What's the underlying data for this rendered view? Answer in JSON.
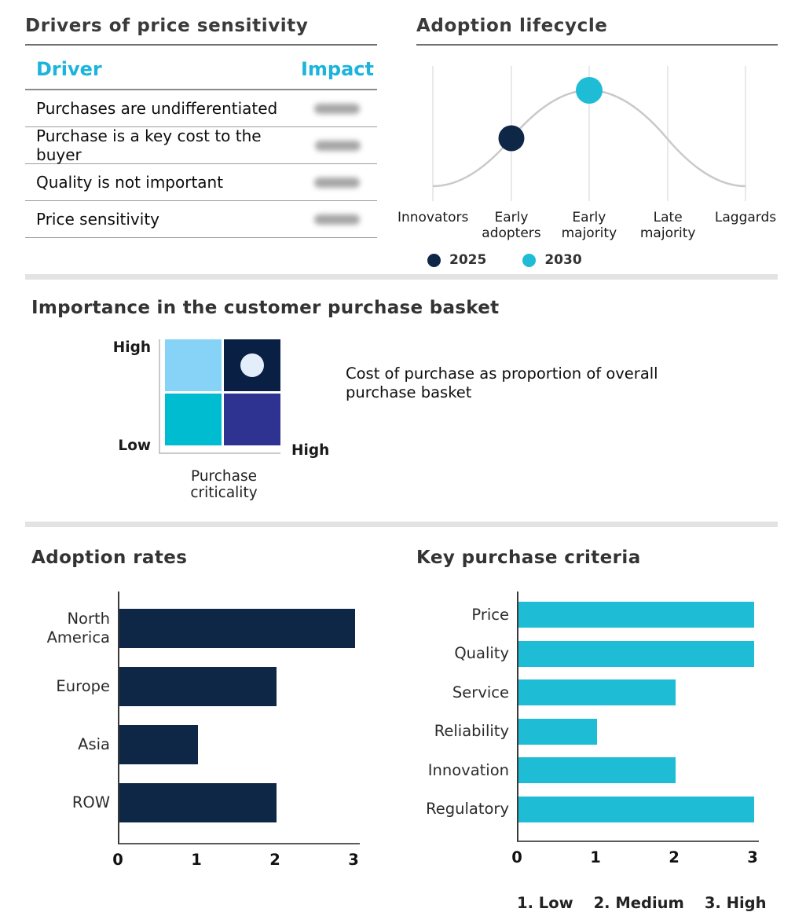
{
  "colors": {
    "navy": "#0f2747",
    "cyan": "#1fbcd6",
    "table_header_cyan": "#1cb4dc",
    "quadrant_light_blue": "#87d3f8",
    "quadrant_navy": "#0a1f44",
    "quadrant_teal": "#00bcd0",
    "quadrant_indigo": "#2e3392",
    "marker_light": "#e4eefb",
    "curve_gray": "#cccccc",
    "divider_gray": "#e3e3e3"
  },
  "chart_data": [
    {
      "type": "table",
      "title": "Drivers of price sensitivity",
      "columns": [
        "Driver",
        "Impact"
      ],
      "rows": [
        "Purchases are undifferentiated",
        "Purchase is a key cost to the buyer",
        "Quality is not important",
        "Price sensitivity"
      ],
      "impact_values": "blurred / illegible in source image"
    },
    {
      "type": "line",
      "title": "Adoption lifecycle",
      "categories": [
        "Innovators",
        "Early adopters",
        "Early majority",
        "Late majority",
        "Laggards"
      ],
      "curve": "gray bell-shaped adoption curve peaking at Early majority",
      "points": [
        {
          "series": "2025",
          "category": "Early adopters",
          "color": "#0f2747"
        },
        {
          "series": "2030",
          "category": "Early majority",
          "color": "#1fbcd6"
        }
      ],
      "legend": [
        {
          "label": "2025",
          "color": "#0f2747"
        },
        {
          "label": "2030",
          "color": "#1fbcd6"
        }
      ],
      "legend_position": "bottom-left",
      "grid": "vertical gridlines at each category"
    },
    {
      "type": "heatmap",
      "title": "Importance in the customer purchase basket",
      "y_axis_labels": [
        "High",
        "Low"
      ],
      "x_max_label": "High",
      "x_title": "Purchase criticality",
      "cells": [
        [
          "#87d3f8",
          "#0a1f44"
        ],
        [
          "#00bcd0",
          "#2e3392"
        ]
      ],
      "marker": {
        "quadrant": "top-right",
        "color": "#e4eefb"
      },
      "annotation": "Cost of purchase as proportion of overall purchase basket"
    },
    {
      "type": "bar",
      "orientation": "horizontal",
      "title": "Adoption rates",
      "categories": [
        "North America",
        "Europe",
        "Asia",
        "ROW"
      ],
      "values": [
        3,
        2,
        1,
        2
      ],
      "xticks": [
        "0",
        "1",
        "2",
        "3"
      ],
      "xlim": [
        0,
        3
      ],
      "bar_color": "#0f2747"
    },
    {
      "type": "bar",
      "orientation": "horizontal",
      "title": "Key purchase criteria",
      "categories": [
        "Price",
        "Quality",
        "Service",
        "Reliability",
        "Innovation",
        "Regulatory"
      ],
      "values": [
        3,
        3,
        2,
        1,
        2,
        3
      ],
      "xticks": [
        "0",
        "1",
        "2",
        "3"
      ],
      "xlim": [
        0,
        3
      ],
      "bar_color": "#1fbcd6",
      "footnote": [
        "1. Low",
        "2. Medium",
        "3. High"
      ]
    }
  ]
}
